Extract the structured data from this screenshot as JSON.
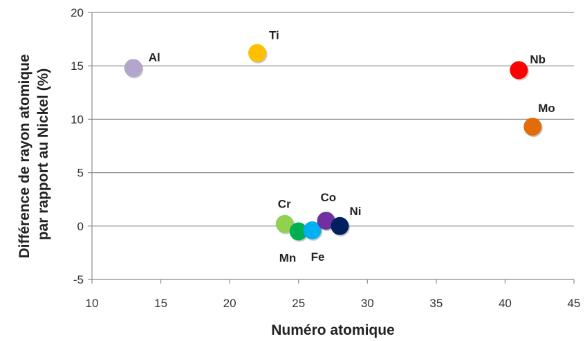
{
  "chart_data": {
    "type": "scatter",
    "title": "",
    "xlabel": "Numéro atomique",
    "ylabel_line1": "Différence de rayon atomique",
    "ylabel_line2": "par rapport au Nickel (%)",
    "xlim": [
      10,
      45
    ],
    "ylim": [
      -5,
      20
    ],
    "xticks": [
      10,
      15,
      20,
      25,
      30,
      35,
      40,
      45
    ],
    "yticks": [
      -5,
      0,
      5,
      10,
      15,
      20
    ],
    "grid": "horizontal",
    "legend": "none",
    "points": [
      {
        "label": "Al",
        "x": 13,
        "y": 14.8,
        "color": "#b3a6cc"
      },
      {
        "label": "Ti",
        "x": 22,
        "y": 16.2,
        "color": "#ffc000"
      },
      {
        "label": "Nb",
        "x": 41,
        "y": 14.6,
        "color": "#ff0000"
      },
      {
        "label": "Mo",
        "x": 42,
        "y": 9.3,
        "color": "#e36c09"
      },
      {
        "label": "Cr",
        "x": 24,
        "y": 0.2,
        "color": "#92d050"
      },
      {
        "label": "Mn",
        "x": 25,
        "y": -0.5,
        "color": "#00b050"
      },
      {
        "label": "Fe",
        "x": 26,
        "y": -0.4,
        "color": "#00b0f0"
      },
      {
        "label": "Co",
        "x": 27,
        "y": 0.5,
        "color": "#7030a0"
      },
      {
        "label": "Ni",
        "x": 28,
        "y": 0.0,
        "color": "#002060"
      }
    ]
  }
}
